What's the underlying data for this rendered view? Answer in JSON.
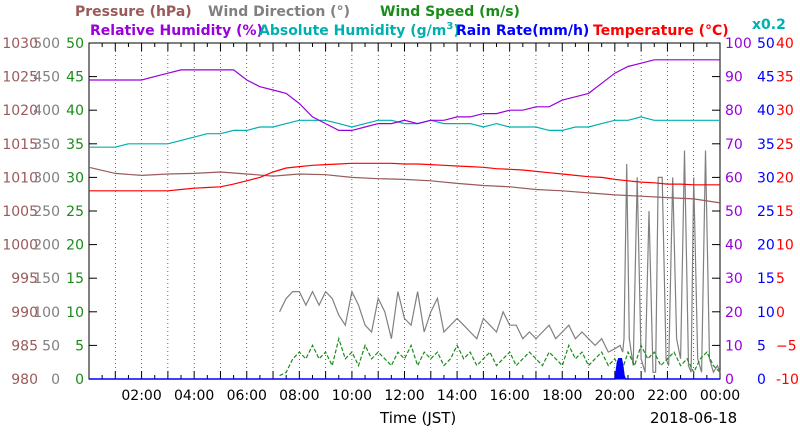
{
  "chart_data": {
    "type": "line",
    "xlabel": "Time (JST)",
    "date": "2018-06-18",
    "x_range": [
      "00:00",
      "24:00"
    ],
    "x_ticks": [
      "02:00",
      "04:00",
      "06:00",
      "08:00",
      "10:00",
      "12:00",
      "14:00",
      "16:00",
      "18:00",
      "20:00",
      "22:00",
      "00:00"
    ],
    "x_minor_step_hours": 0.5,
    "grid": "vertical dotted at each hour",
    "axes": {
      "pressure": {
        "label": "Pressure (hPa)",
        "color": "#9a5a5a",
        "range": [
          980,
          1030
        ],
        "ticks": [
          "980",
          "985",
          "990",
          "995",
          "1000",
          "1005",
          "1010",
          "1015",
          "1020",
          "1025",
          "1030"
        ],
        "side": "left"
      },
      "wind_direction": {
        "label": "Wind Direction (°)",
        "color": "#808080",
        "range": [
          0,
          500
        ],
        "ticks": [
          "0",
          "50",
          "100",
          "150",
          "200",
          "250",
          "300",
          "350",
          "400",
          "450",
          "500"
        ],
        "side": "left"
      },
      "wind_speed": {
        "label": "Wind Speed (m/s)",
        "color": "#1a8c1a",
        "range": [
          0,
          50
        ],
        "ticks": [
          "0",
          "5",
          "10",
          "15",
          "20",
          "25",
          "30",
          "35",
          "40",
          "45",
          "50"
        ],
        "side": "left"
      },
      "humidity": {
        "label": "Relative Humidity (%)",
        "color": "#9900dd",
        "range": [
          0,
          100
        ],
        "ticks": [
          "0",
          "10",
          "20",
          "30",
          "40",
          "50",
          "60",
          "70",
          "80",
          "90",
          "100"
        ],
        "side": "right"
      },
      "abs_humidity": {
        "label": "Absolute Humidity (g/m",
        "sup": "3",
        "label_end": ")",
        "color": "#00b0b0",
        "scale_note": "x0.2",
        "side": "right"
      },
      "rain_rate": {
        "label": "Rain Rate(mm/h)",
        "color": "#0000ff",
        "range": [
          0,
          50
        ],
        "ticks": [
          "0",
          "5",
          "10",
          "15",
          "20",
          "25",
          "30",
          "35",
          "40",
          "45",
          "50"
        ],
        "side": "right"
      },
      "temperature": {
        "label": "Temperature (°C)",
        "color": "#ff0000",
        "range": [
          -10,
          40
        ],
        "ticks": [
          "-10",
          "−5",
          "0",
          "5",
          "10",
          "15",
          "20",
          "25",
          "30",
          "35",
          "40"
        ],
        "side": "right"
      }
    },
    "series": [
      {
        "name": "Relative Humidity (%)",
        "axis": "humidity",
        "color": "#9900dd",
        "x": [
          0,
          0.5,
          1,
          1.5,
          2,
          2.5,
          3,
          3.5,
          4,
          4.5,
          5,
          5.5,
          6,
          6.5,
          7,
          7.5,
          8,
          8.5,
          9,
          9.5,
          10,
          10.5,
          11,
          11.5,
          12,
          12.5,
          13,
          13.5,
          14,
          14.5,
          15,
          15.5,
          16,
          16.5,
          17,
          17.5,
          18,
          18.5,
          19,
          19.5,
          20,
          20.5,
          21,
          21.5,
          22,
          22.5,
          23,
          23.5,
          24
        ],
        "y": [
          89,
          89,
          89,
          89,
          89,
          90,
          91,
          92,
          92,
          92,
          92,
          92,
          89,
          87,
          86,
          85,
          82,
          78,
          76,
          74,
          74,
          75,
          76,
          76,
          77,
          76,
          77,
          77,
          78,
          78,
          79,
          79,
          80,
          80,
          81,
          81,
          83,
          84,
          85,
          88,
          91,
          93,
          94,
          95,
          95,
          95,
          95,
          95,
          95
        ]
      },
      {
        "name": "Absolute Humidity (g/m3)",
        "axis": "humidity",
        "color": "#00b0b0",
        "x": [
          0,
          0.5,
          1,
          1.5,
          2,
          2.5,
          3,
          3.5,
          4,
          4.5,
          5,
          5.5,
          6,
          6.5,
          7,
          7.5,
          8,
          8.5,
          9,
          9.5,
          10,
          10.5,
          11,
          11.5,
          12,
          12.5,
          13,
          13.5,
          14,
          14.5,
          15,
          15.5,
          16,
          16.5,
          17,
          17.5,
          18,
          18.5,
          19,
          19.5,
          20,
          20.5,
          21,
          21.5,
          22,
          22.5,
          23,
          23.5,
          24
        ],
        "y": [
          69,
          69,
          69,
          70,
          70,
          70,
          70,
          71,
          72,
          73,
          73,
          74,
          74,
          75,
          75,
          76,
          77,
          77,
          77,
          76,
          75,
          76,
          77,
          77,
          76,
          76,
          77,
          76,
          76,
          76,
          75,
          76,
          75,
          75,
          75,
          74,
          74,
          75,
          75,
          76,
          77,
          77,
          78,
          77,
          77,
          77,
          77,
          77,
          77
        ]
      },
      {
        "name": "Temperature (°C)",
        "axis": "temperature",
        "color": "#ff0000",
        "x": [
          0,
          0.5,
          1,
          1.5,
          2,
          2.5,
          3,
          3.5,
          4,
          4.5,
          5,
          5.5,
          6,
          6.5,
          7,
          7.5,
          8,
          8.5,
          9,
          9.5,
          10,
          10.5,
          11,
          11.5,
          12,
          12.5,
          13,
          13.5,
          14,
          14.5,
          15,
          15.5,
          16,
          16.5,
          17,
          17.5,
          18,
          18.5,
          19,
          19.5,
          20,
          20.5,
          21,
          21.5,
          22,
          22.5,
          23,
          23.5,
          24
        ],
        "y": [
          18,
          18,
          18,
          18,
          18,
          18,
          18,
          18.2,
          18.4,
          18.5,
          18.6,
          19,
          19.5,
          20,
          20.8,
          21.4,
          21.6,
          21.8,
          21.9,
          22,
          22.1,
          22.1,
          22.1,
          22.1,
          22,
          22,
          21.9,
          21.8,
          21.7,
          21.6,
          21.5,
          21.3,
          21.2,
          21.1,
          20.9,
          20.7,
          20.5,
          20.3,
          20.1,
          20,
          19.7,
          19.5,
          19.3,
          19.2,
          19,
          19,
          18.9,
          18.9,
          18.9
        ]
      },
      {
        "name": "Pressure (hPa)",
        "axis": "pressure",
        "color": "#9a5a5a",
        "x": [
          0,
          1,
          2,
          3,
          4,
          5,
          6,
          7,
          8,
          9,
          10,
          11,
          12,
          13,
          14,
          15,
          16,
          17,
          18,
          19,
          20,
          21,
          22,
          23,
          24
        ],
        "y": [
          1011.5,
          1010.6,
          1010.3,
          1010.5,
          1010.6,
          1010.8,
          1010.5,
          1010.2,
          1010.5,
          1010.4,
          1010,
          1009.8,
          1009.7,
          1009.5,
          1009.1,
          1008.8,
          1008.6,
          1008.2,
          1008,
          1007.7,
          1007.4,
          1007.2,
          1007,
          1006.8,
          1006.2
        ]
      },
      {
        "name": "Wind Direction (°)",
        "axis": "wind_direction",
        "color": "#808080",
        "x": [
          7.25,
          7.5,
          7.75,
          8,
          8.25,
          8.5,
          8.75,
          9,
          9.25,
          9.5,
          9.75,
          10,
          10.25,
          10.5,
          10.75,
          11,
          11.25,
          11.5,
          11.75,
          12,
          12.25,
          12.5,
          12.75,
          13,
          13.25,
          13.5,
          13.75,
          14,
          14.25,
          14.5,
          14.75,
          15,
          15.25,
          15.5,
          15.75,
          16,
          16.25,
          16.5,
          16.75,
          17,
          17.25,
          17.5,
          17.75,
          18,
          18.25,
          18.5,
          18.75,
          19,
          19.25,
          19.5,
          19.75,
          20,
          20.2,
          20.3,
          20.35,
          20.45,
          20.55,
          20.7,
          20.85,
          21,
          21.15,
          21.3,
          21.45,
          21.55,
          21.65,
          21.8,
          21.95,
          22.05,
          22.2,
          22.35,
          22.5,
          22.65,
          22.8,
          22.9,
          23,
          23.15,
          23.3,
          23.45,
          23.6,
          23.75,
          23.9,
          24
        ],
        "y": [
          100,
          120,
          130,
          130,
          110,
          130,
          110,
          130,
          120,
          95,
          80,
          130,
          110,
          80,
          70,
          120,
          100,
          60,
          130,
          90,
          80,
          130,
          70,
          100,
          120,
          70,
          80,
          90,
          80,
          70,
          60,
          90,
          80,
          70,
          100,
          80,
          80,
          60,
          70,
          60,
          70,
          80,
          60,
          70,
          80,
          60,
          70,
          60,
          50,
          60,
          40,
          45,
          50,
          40,
          60,
          320,
          60,
          20,
          300,
          30,
          10,
          250,
          10,
          10,
          300,
          300,
          30,
          20,
          300,
          60,
          30,
          340,
          20,
          10,
          300,
          30,
          10,
          340,
          30,
          10,
          20,
          10
        ]
      },
      {
        "name": "Wind Speed (m/s)",
        "axis": "wind_speed",
        "color": "#1a8c1a",
        "x": [
          7.25,
          7.5,
          7.75,
          8,
          8.25,
          8.5,
          8.75,
          9,
          9.25,
          9.5,
          9.75,
          10,
          10.25,
          10.5,
          10.75,
          11,
          11.25,
          11.5,
          11.75,
          12,
          12.25,
          12.5,
          12.75,
          13,
          13.25,
          13.5,
          13.75,
          14,
          14.25,
          14.5,
          14.75,
          15,
          15.25,
          15.5,
          15.75,
          16,
          16.25,
          16.5,
          16.75,
          17,
          17.25,
          17.5,
          17.75,
          18,
          18.25,
          18.5,
          18.75,
          19,
          19.25,
          19.5,
          19.75,
          20,
          20.25,
          20.5,
          20.75,
          21,
          21.25,
          21.5,
          21.75,
          22,
          22.25,
          22.5,
          22.75,
          23,
          23.25,
          23.5,
          23.75,
          24
        ],
        "y": [
          0.5,
          1,
          3,
          4,
          3,
          5,
          3,
          4,
          2,
          6,
          3,
          4,
          2,
          5,
          3,
          4,
          3,
          2,
          4,
          3,
          5,
          2,
          4,
          3,
          4,
          2,
          3,
          5,
          3,
          4,
          2,
          3,
          4,
          2,
          3,
          4,
          2,
          3,
          4,
          3,
          2,
          4,
          3,
          2,
          5,
          3,
          4,
          2,
          3,
          4,
          2,
          3,
          1,
          4,
          2,
          5,
          3,
          4,
          2,
          3,
          4,
          2,
          3,
          1,
          3,
          4,
          2,
          1
        ]
      },
      {
        "name": "Rain Rate(mm/h)",
        "axis": "rain_rate",
        "color": "#0000ff",
        "x": [
          0,
          20,
          20.05,
          20.1,
          20.15,
          20.2,
          20.25,
          20.3,
          20.35,
          20.4,
          24
        ],
        "y": [
          0,
          0,
          1,
          2.5,
          3,
          3,
          3,
          2,
          0.5,
          0,
          0
        ]
      }
    ],
    "footer_date": "2018-06-18"
  }
}
